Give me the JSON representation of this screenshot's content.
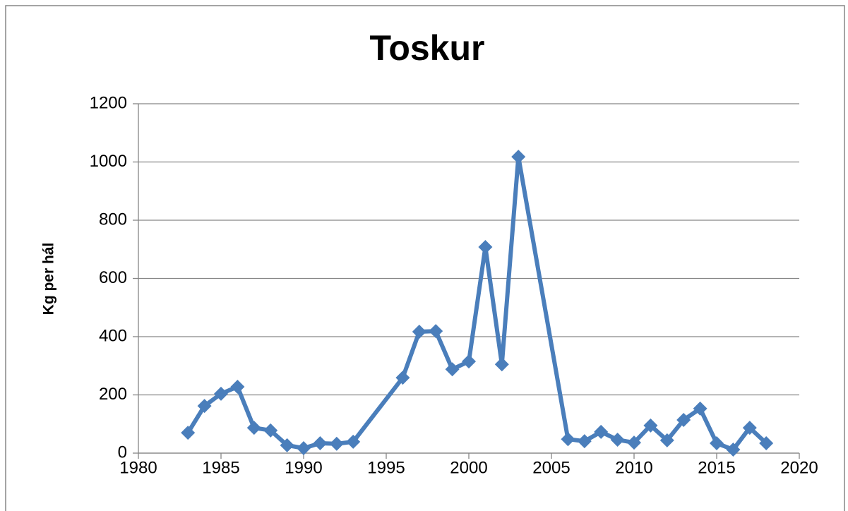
{
  "chart_data": {
    "type": "line",
    "title": "Toskur",
    "y_label": "Kg per hál",
    "x": [
      1983,
      1984,
      1985,
      1986,
      1987,
      1988,
      1989,
      1990,
      1991,
      1992,
      1993,
      1996,
      1997,
      1998,
      1999,
      2000,
      2001,
      2002,
      2003,
      2006,
      2007,
      2008,
      2009,
      2010,
      2011,
      2012,
      2013,
      2014,
      2015,
      2016,
      2017,
      2018
    ],
    "series": [
      {
        "name": "Toskur",
        "color": "#4a7ebb",
        "values": [
          70,
          162,
          204,
          228,
          87,
          78,
          27,
          17,
          34,
          32,
          39,
          259,
          417,
          419,
          288,
          315,
          708,
          305,
          1018,
          48,
          41,
          73,
          46,
          36,
          95,
          44,
          114,
          153,
          34,
          12,
          87,
          34
        ]
      }
    ],
    "xlim": [
      1980,
      2020
    ],
    "xticks": [
      1980,
      1985,
      1990,
      1995,
      2000,
      2005,
      2010,
      2015,
      2020
    ],
    "ylim": [
      0,
      1200
    ],
    "yticks": [
      0,
      200,
      400,
      600,
      800,
      1000,
      1200
    ],
    "grid": true
  }
}
